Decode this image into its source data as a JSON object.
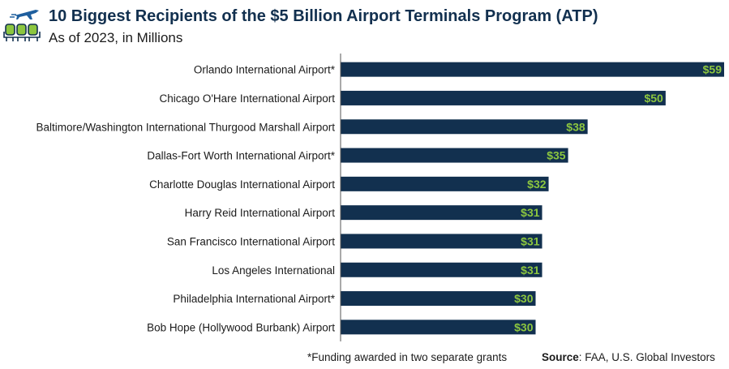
{
  "header": {
    "title": "10 Biggest Recipients of the $5 Billion Airport Terminals Program (ATP)",
    "subtitle": "As of 2023, in Millions",
    "logo_icon": "airplane-seats-icon"
  },
  "chart_data": {
    "type": "bar",
    "orientation": "horizontal",
    "categories": [
      "Orlando International Airport*",
      "Chicago O'Hare International Airport",
      "Baltimore/Washington International Thurgood Marshall Airport",
      "Dallas-Fort Worth International Airport*",
      "Charlotte Douglas International Airport",
      "Harry Reid International Airport",
      "San Francisco International Airport",
      "Los Angeles International",
      "Philadelphia International Airport*",
      "Bob Hope (Hollywood Burbank) Airport"
    ],
    "values": [
      59,
      50,
      38,
      35,
      32,
      31,
      31,
      31,
      30,
      30
    ],
    "value_labels": [
      "$59",
      "$50",
      "$38",
      "$35",
      "$32",
      "$31",
      "$31",
      "$31",
      "$30",
      "$30"
    ],
    "xlim": [
      0,
      59
    ],
    "unit": "Millions USD",
    "colors": {
      "bar": "#12304f",
      "value_label": "#8cc63f",
      "axis": "#555555"
    }
  },
  "footer": {
    "footnote": "*Funding awarded in two separate grants",
    "source_label": "Source",
    "source_text": ": FAA, U.S. Global Investors"
  }
}
